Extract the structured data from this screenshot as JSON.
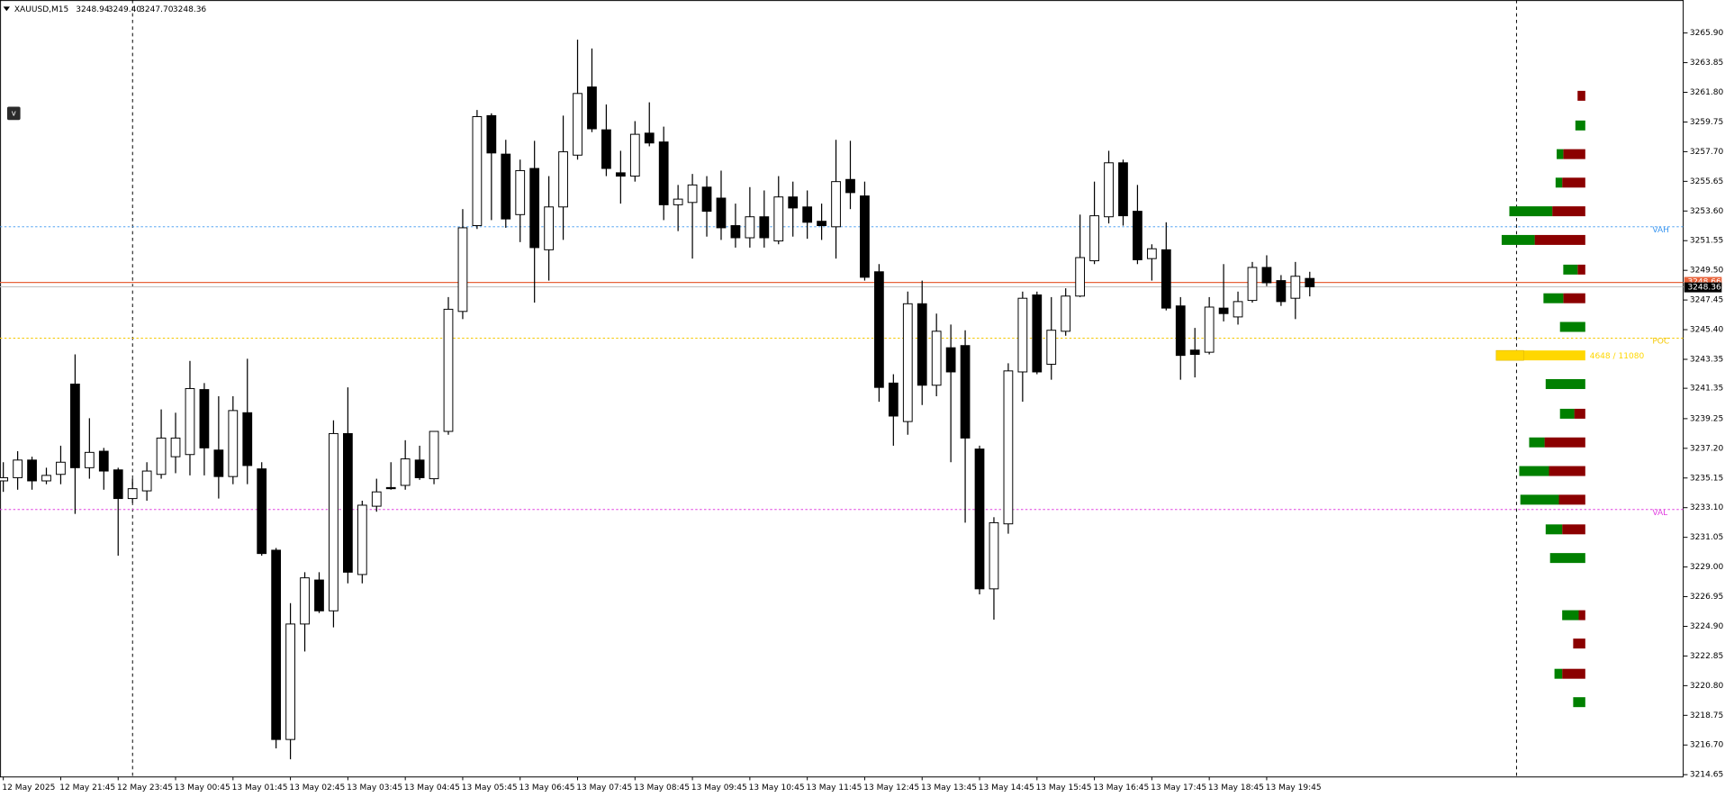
{
  "chart_data": {
    "type": "candlestick",
    "title": "XAUUSD,M15",
    "ohlc_labels": [
      "3248.94",
      "3249.40",
      "3247.70",
      "3248.36"
    ],
    "toggle_label": "v",
    "categories": [
      "12 May 2025",
      null,
      null,
      null,
      "12 May 21:45",
      null,
      null,
      null,
      "12 May 23:45",
      null,
      null,
      null,
      "13 May 00:45",
      null,
      null,
      null,
      "13 May 01:45",
      null,
      null,
      null,
      "13 May 02:45",
      null,
      null,
      null,
      "13 May 03:45",
      null,
      null,
      null,
      "13 May 04:45",
      null,
      null,
      null,
      "13 May 05:45",
      null,
      null,
      null,
      "13 May 06:45",
      null,
      null,
      null,
      "13 May 07:45",
      null,
      null,
      null,
      "13 May 08:45",
      null,
      null,
      null,
      "13 May 09:45",
      null,
      null,
      null,
      "13 May 10:45",
      null,
      null,
      null,
      "13 May 11:45",
      null,
      null,
      null,
      "13 May 12:45",
      null,
      null,
      null,
      "13 May 13:45",
      null,
      null,
      null,
      "13 May 14:45",
      null,
      null,
      null,
      "13 May 15:45",
      null,
      null,
      null,
      "13 May 16:45",
      null,
      null,
      null,
      "13 May 17:45",
      null,
      null,
      null,
      "13 May 18:45",
      null,
      null,
      null,
      "13 May 19:45",
      null,
      null,
      null
    ],
    "open": [
      3234.95,
      3235.17,
      3236.39,
      3234.95,
      3235.4,
      3241.64,
      3235.86,
      3237.0,
      3235.71,
      3233.73,
      3234.26,
      3235.4,
      3236.62,
      3236.77,
      3241.26,
      3237.08,
      3235.25,
      3239.66,
      3235.78,
      3230.16,
      3217.08,
      3225.06,
      3228.1,
      3225.97,
      3238.22,
      3228.48,
      3233.2,
      3234.49,
      3234.64,
      3236.39,
      3235.1,
      3238.37,
      3246.66,
      3252.59,
      3260.19,
      3257.53,
      3253.35,
      3256.54,
      3250.92,
      3253.88,
      3257.46,
      3262.17,
      3259.21,
      3256.24,
      3256.01,
      3258.98,
      3258.37,
      3254.03,
      3254.19,
      3255.25,
      3254.49,
      3252.59,
      3251.75,
      3253.2,
      3251.53,
      3254.57,
      3253.88,
      3252.89,
      3252.51,
      3255.78,
      3254.64,
      3249.4,
      3241.71,
      3239.05,
      3247.19,
      3241.56,
      3244.15,
      3244.3,
      3237.15,
      3227.49,
      3231.98,
      3242.48,
      3247.8,
      3243.01,
      3245.29,
      3247.72,
      3250.16,
      3253.2,
      3256.93,
      3253.58,
      3250.31,
      3250.92,
      3247.04,
      3243.99,
      3243.84,
      3246.89,
      3246.28,
      3247.42,
      3249.7,
      3248.79,
      3247.57,
      3248.94
    ],
    "high": [
      3236.24,
      3237.0,
      3236.62,
      3235.86,
      3237.38,
      3243.69,
      3239.28,
      3237.23,
      3235.86,
      3235.1,
      3236.24,
      3239.89,
      3239.66,
      3243.24,
      3241.71,
      3240.8,
      3240.8,
      3243.39,
      3236.24,
      3230.31,
      3226.5,
      3228.64,
      3228.64,
      3239.13,
      3241.41,
      3233.58,
      3235.1,
      3236.24,
      3237.76,
      3237.38,
      3238.37,
      3247.65,
      3253.73,
      3260.58,
      3260.35,
      3258.52,
      3257.15,
      3258.45,
      3256.01,
      3260.19,
      3265.44,
      3264.83,
      3260.96,
      3257.76,
      3259.81,
      3261.11,
      3259.43,
      3255.4,
      3256.16,
      3256.01,
      3256.39,
      3254.11,
      3255.25,
      3255.02,
      3256.01,
      3255.63,
      3255.02,
      3254.11,
      3258.52,
      3258.45,
      3255.63,
      3249.93,
      3242.32,
      3248.03,
      3248.79,
      3246.51,
      3245.75,
      3245.36,
      3237.38,
      3232.44,
      3243.08,
      3248.03,
      3248.03,
      3247.65,
      3248.26,
      3253.35,
      3255.63,
      3257.76,
      3257.15,
      3255.4,
      3251.3,
      3252.82,
      3247.65,
      3245.52,
      3247.65,
      3249.93,
      3248.03,
      3250.08,
      3250.54,
      3249.17,
      3250.08,
      3249.4
    ],
    "low": [
      3234.19,
      3234.34,
      3234.34,
      3234.72,
      3234.72,
      3232.67,
      3235.1,
      3234.34,
      3229.78,
      3233.43,
      3233.58,
      3235.1,
      3235.48,
      3235.33,
      3235.33,
      3233.73,
      3234.72,
      3234.72,
      3229.78,
      3216.47,
      3215.71,
      3223.16,
      3225.82,
      3224.83,
      3227.87,
      3227.87,
      3232.82,
      3234.34,
      3234.34,
      3235.02,
      3234.72,
      3238.14,
      3246.13,
      3252.36,
      3252.97,
      3252.44,
      3251.45,
      3247.27,
      3248.79,
      3251.6,
      3257.15,
      3259.05,
      3256.01,
      3254.11,
      3255.63,
      3258.07,
      3252.97,
      3252.21,
      3250.31,
      3251.83,
      3251.6,
      3251.07,
      3251.07,
      3251.07,
      3251.3,
      3251.83,
      3251.68,
      3251.6,
      3250.31,
      3253.73,
      3248.79,
      3240.42,
      3237.38,
      3238.14,
      3240.19,
      3240.8,
      3236.24,
      3232.06,
      3227.11,
      3225.36,
      3231.3,
      3240.42,
      3242.32,
      3241.94,
      3244.98,
      3247.65,
      3249.93,
      3252.74,
      3252.59,
      3249.93,
      3248.79,
      3246.73,
      3241.94,
      3242.1,
      3243.69,
      3245.97,
      3245.75,
      3247.27,
      3248.41,
      3247.04,
      3246.13,
      3247.7
    ],
    "close": [
      3235.17,
      3236.39,
      3234.95,
      3235.33,
      3236.24,
      3235.86,
      3236.92,
      3235.63,
      3233.73,
      3234.41,
      3235.63,
      3237.91,
      3237.91,
      3241.33,
      3237.23,
      3235.25,
      3239.81,
      3236.01,
      3229.93,
      3217.08,
      3225.06,
      3228.25,
      3225.97,
      3238.22,
      3228.64,
      3233.27,
      3234.19,
      3234.41,
      3236.47,
      3235.17,
      3238.37,
      3246.81,
      3252.44,
      3260.12,
      3257.61,
      3253.05,
      3256.39,
      3251.07,
      3253.88,
      3257.69,
      3261.72,
      3259.28,
      3256.54,
      3256.01,
      3258.9,
      3258.3,
      3254.03,
      3254.42,
      3255.4,
      3253.58,
      3252.44,
      3251.75,
      3253.2,
      3251.75,
      3254.57,
      3253.81,
      3252.82,
      3252.59,
      3255.63,
      3254.87,
      3249.02,
      3241.41,
      3239.43,
      3247.19,
      3241.56,
      3245.29,
      3242.48,
      3237.91,
      3227.49,
      3232.06,
      3242.55,
      3247.57,
      3242.48,
      3245.36,
      3247.72,
      3250.38,
      3253.27,
      3256.93,
      3253.27,
      3250.23,
      3250.99,
      3246.89,
      3243.62,
      3243.69,
      3246.96,
      3246.51,
      3247.34,
      3249.7,
      3248.64,
      3247.34,
      3249.09,
      3248.36
    ],
    "up_color": "#ffffff",
    "down_color": "#000000",
    "wick_color": "#000000",
    "ask": 3248.66,
    "ask_color": "#e8643c",
    "bid_color": "#c0c0c0",
    "levels": [
      {
        "name": "VAH",
        "value": 3252.51,
        "color": "#3a96f0"
      },
      {
        "name": "POC",
        "value": 3244.81,
        "color": "#f5c800"
      },
      {
        "name": "VAL",
        "value": 3232.97,
        "color": "#e040e0"
      }
    ],
    "volume_profile": {
      "prices": [
        3261.56,
        3259.51,
        3257.53,
        3255.56,
        3253.58,
        3251.6,
        3249.55,
        3247.57,
        3245.59,
        3243.62,
        3241.64,
        3239.59,
        3237.61,
        3235.63,
        3233.65,
        3231.6,
        3229.62,
        3225.67,
        3223.71,
        3221.62,
        3219.66
      ],
      "buy": [
        0,
        517,
        344,
        344,
        2239,
        1722,
        746,
        1033,
        1320,
        1435,
        2066,
        746,
        804,
        1550,
        2009,
        861,
        1837,
        861,
        0,
        402,
        631
      ],
      "sell": [
        402,
        0,
        1148,
        1205,
        1722,
        2640,
        402,
        1148,
        0,
        3213,
        0,
        574,
        2124,
        1894,
        1378,
        1205,
        0,
        344,
        631,
        1205,
        0
      ],
      "buy_color": "#008000",
      "sell_color": "#8b0000",
      "poc_color": "#ffd700",
      "poc_label": "4648 / 11080"
    },
    "ylim": [
      3214.49,
      3268.18
    ],
    "yticks": [
      {
        "value": 3265.9,
        "label": "3265.90"
      },
      3263.85,
      {
        "value": 3261.8,
        "label": "3261.80"
      },
      3259.75,
      {
        "value": 3257.7,
        "label": "3257.70"
      },
      3255.65,
      {
        "value": 3253.6,
        "label": "3253.60"
      },
      3251.55,
      {
        "value": 3249.5,
        "label": "3249.50"
      },
      3247.45,
      {
        "value": 3245.4,
        "label": "3245.40"
      },
      3243.35,
      3241.35,
      3239.25,
      {
        "value": 3237.2,
        "label": "3237.20"
      },
      3235.15,
      {
        "value": 3233.1,
        "label": "3233.10"
      },
      3231.05,
      {
        "value": 3229,
        "label": "3229.00"
      },
      3226.95,
      {
        "value": 3224.9,
        "label": "3224.90"
      },
      3222.85,
      {
        "value": 3220.8,
        "label": "3220.80"
      },
      3218.75,
      {
        "value": 3216.7,
        "label": "3216.70"
      },
      3214.65
    ]
  }
}
